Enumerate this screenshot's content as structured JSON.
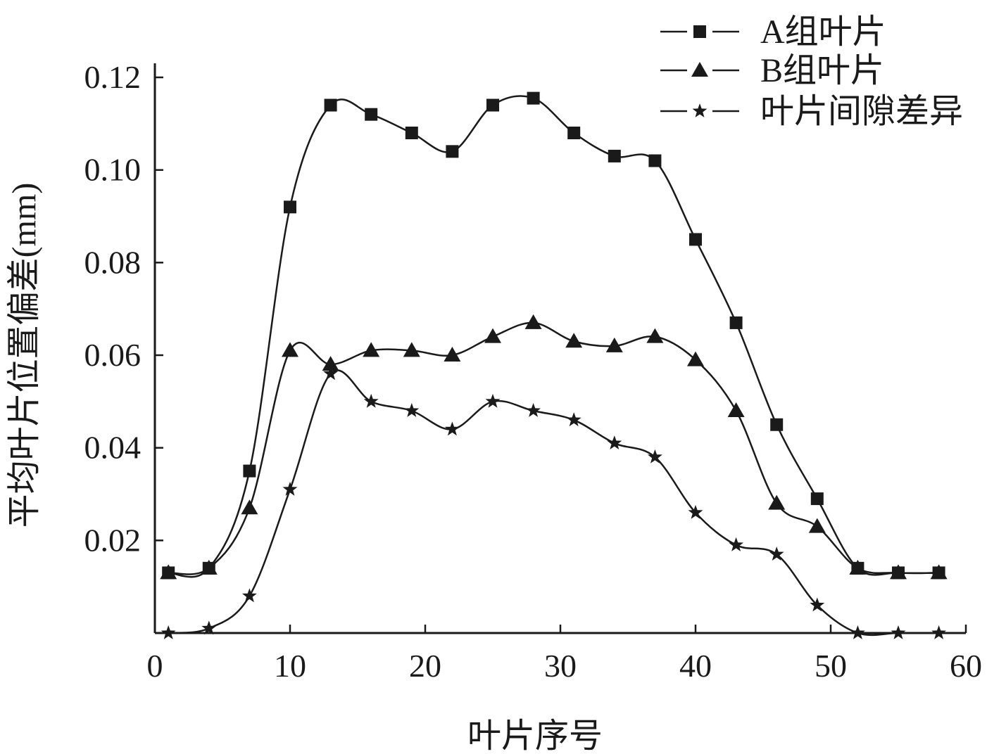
{
  "chart_data": {
    "type": "line",
    "title": "",
    "xlabel": "叶片序号",
    "ylabel": "平均叶片位置偏差(mm)",
    "xlim": [
      0,
      60
    ],
    "ylim": [
      0,
      0.12
    ],
    "x_ticks": [
      "0",
      "10",
      "20",
      "30",
      "40",
      "50",
      "60"
    ],
    "y_ticks": [
      "0.02",
      "0.04",
      "0.06",
      "0.08",
      "0.10",
      "0.12"
    ],
    "grid": false,
    "legend_position": "top-right",
    "x": [
      1,
      4,
      7,
      10,
      13,
      16,
      19,
      22,
      25,
      28,
      31,
      34,
      37,
      40,
      43,
      46,
      49,
      52,
      55,
      58
    ],
    "series": [
      {
        "name": "A组叶片",
        "marker": "square",
        "values": [
          0.013,
          0.014,
          0.035,
          0.092,
          0.114,
          0.112,
          0.108,
          0.104,
          0.114,
          0.1155,
          0.108,
          0.103,
          0.102,
          0.085,
          0.067,
          0.045,
          0.029,
          0.014,
          0.013,
          0.013
        ]
      },
      {
        "name": "B组叶片",
        "marker": "triangle",
        "values": [
          0.013,
          0.014,
          0.027,
          0.061,
          0.058,
          0.061,
          0.061,
          0.06,
          0.064,
          0.067,
          0.063,
          0.062,
          0.064,
          0.059,
          0.048,
          0.028,
          0.023,
          0.014,
          0.013,
          0.013
        ]
      },
      {
        "name": "叶片间隙差异",
        "marker": "star",
        "values": [
          0.0,
          0.001,
          0.008,
          0.031,
          0.056,
          0.05,
          0.048,
          0.044,
          0.05,
          0.048,
          0.046,
          0.041,
          0.038,
          0.026,
          0.019,
          0.017,
          0.006,
          0.0,
          0.0,
          0.0
        ]
      }
    ]
  }
}
